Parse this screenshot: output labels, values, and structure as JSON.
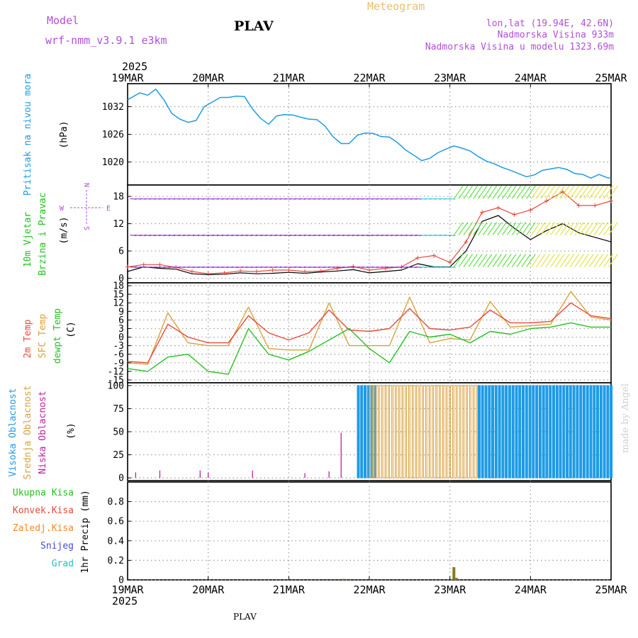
{
  "header": {
    "model_label": "Model",
    "model_name": "wrf-nmm_v3.9.1 e3km",
    "station": "PLAV",
    "product": "Meteogram",
    "lonlat": "lon,lat (19.94E, 42.6N)",
    "elevation": "Nadmorska Visina 933m",
    "model_elevation": "Nadmorska Visina u modelu 1323.69m",
    "footer_station": "PLAV",
    "credit": "made by Angel"
  },
  "colors": {
    "pressure": "#1e9be6",
    "temp2m": "#e84a3c",
    "sfc_temp": "#d9a13b",
    "dewpt": "#22c21e",
    "high_cloud": "#1e9be6",
    "mid_cloud": "#d9a13b",
    "low_cloud": "#c020a0",
    "total_precip": "#22c21e",
    "conv_precip": "#e84a3c",
    "freezing_precip": "#f08a28",
    "snow": "#4848e0",
    "hail": "#20c0c0",
    "wind_gust": "#e84a3c",
    "purple_text": "#b050d8",
    "gold_text": "#e8c070"
  },
  "chart_data": [
    {
      "id": "pressure",
      "type": "line",
      "title": "Pritisak na nivou mora",
      "ylabel": "(hPa)",
      "ylim": [
        1015,
        1037
      ],
      "yticks": [
        1020,
        1026,
        1032
      ],
      "x_top_year": "2025",
      "x_bottom_year": "2025",
      "x_labels": [
        "19MAR",
        "20MAR",
        "21MAR",
        "22MAR",
        "23MAR",
        "24MAR",
        "25MAR"
      ],
      "x": [
        0,
        0.15,
        0.25,
        0.35,
        0.45,
        0.55,
        0.65,
        0.75,
        0.85,
        0.95,
        1.05,
        1.15,
        1.25,
        1.35,
        1.45,
        1.55,
        1.65,
        1.75,
        1.85,
        1.95,
        2.05,
        2.15,
        2.25,
        2.35,
        2.45,
        2.55,
        2.65,
        2.75,
        2.85,
        2.95,
        3.05,
        3.15,
        3.25,
        3.35,
        3.45,
        3.55,
        3.65,
        3.75,
        3.85,
        3.95,
        4.05,
        4.15,
        4.25,
        4.35,
        4.45,
        4.55,
        4.65,
        4.75,
        4.85,
        4.95,
        5.05,
        5.15,
        5.25,
        5.35,
        5.45,
        5.55,
        5.65,
        5.75,
        5.85,
        5.95,
        6.0
      ],
      "series": [
        {
          "name": "Pritisak",
          "values": [
            1033.5,
            1035,
            1034.5,
            1035.8,
            1033.5,
            1030.5,
            1029.3,
            1028.6,
            1029,
            1032,
            1033,
            1034,
            1034,
            1034.3,
            1034.2,
            1031.5,
            1029.5,
            1028.2,
            1030,
            1030.3,
            1030.2,
            1029.7,
            1029.3,
            1029.2,
            1027.8,
            1025.5,
            1024,
            1024,
            1025.8,
            1026.3,
            1026.2,
            1025.5,
            1025.4,
            1024.2,
            1022.6,
            1021.5,
            1020.3,
            1020.8,
            1022,
            1022.8,
            1023.5,
            1023,
            1022.4,
            1021.2,
            1020.2,
            1019.6,
            1018.8,
            1018.2,
            1017.5,
            1016.8,
            1017.2,
            1018.2,
            1018.5,
            1018.8,
            1018.4,
            1017.5,
            1017.3,
            1016.5,
            1017.3,
            1016.6,
            1016.5
          ]
        }
      ]
    },
    {
      "id": "wind",
      "type": "line",
      "title": "10m Vjetar",
      "title2": "Brzina i Pravac",
      "ylabel": "(m/s)",
      "ylim": [
        -1,
        20.5
      ],
      "yticks": [
        0,
        6,
        12,
        18
      ],
      "compass": {
        "n": "N",
        "e": "E",
        "s": "S",
        "w": "W"
      },
      "x": [
        0,
        0.2,
        0.4,
        0.6,
        0.8,
        1.0,
        1.2,
        1.4,
        1.6,
        1.8,
        2.0,
        2.2,
        2.4,
        2.6,
        2.8,
        3.0,
        3.2,
        3.4,
        3.6,
        3.8,
        4.0,
        4.2,
        4.4,
        4.6,
        4.8,
        5.0,
        5.2,
        5.4,
        5.6,
        5.8,
        6.0
      ],
      "series": [
        {
          "name": "wind_speed",
          "values": [
            1.5,
            2.5,
            2.2,
            2.0,
            1.0,
            0.8,
            0.9,
            1.2,
            1.0,
            1.1,
            1.3,
            1.1,
            1.4,
            1.6,
            1.9,
            1.2,
            1.5,
            1.8,
            3.2,
            2.5,
            2.5,
            6.0,
            12.5,
            13.8,
            11.0,
            8.5,
            10.5,
            12.0,
            10.0,
            9.0,
            8.0
          ]
        },
        {
          "name": "wind_gust",
          "values": [
            2.5,
            3.0,
            3.0,
            2.4,
            1.5,
            1.0,
            1.2,
            1.6,
            1.5,
            1.8,
            1.8,
            1.5,
            1.6,
            2.2,
            2.6,
            1.8,
            2.2,
            2.5,
            4.5,
            5.0,
            3.5,
            8.0,
            14.5,
            15.5,
            14.0,
            15.0,
            17.0,
            19.0,
            16.0,
            16.0,
            17.0
          ]
        }
      ]
    },
    {
      "id": "temperature",
      "type": "line",
      "title": "2m Temp",
      "title2": "SFC Temp",
      "title3": "dewpt Temp",
      "ylabel": "(C)",
      "ylim": [
        -16,
        19
      ],
      "yticks": [
        -15,
        -12,
        -9,
        -6,
        -3,
        0,
        3,
        6,
        9,
        12,
        15,
        18
      ],
      "x": [
        0,
        0.25,
        0.5,
        0.75,
        1.0,
        1.25,
        1.5,
        1.75,
        2.0,
        2.25,
        2.5,
        2.75,
        3.0,
        3.25,
        3.5,
        3.75,
        4.0,
        4.25,
        4.5,
        4.75,
        5.0,
        5.25,
        5.5,
        5.75,
        6.0
      ],
      "series": [
        {
          "name": "2m Temp",
          "values": [
            -8.5,
            -9.0,
            4.5,
            0,
            -2,
            -2,
            7.5,
            1.5,
            -1,
            1.5,
            9.5,
            2.5,
            2,
            3,
            10,
            3,
            2.5,
            3.5,
            9.5,
            5,
            5,
            5.5,
            12,
            7.5,
            6.5
          ]
        },
        {
          "name": "SFC Temp",
          "values": [
            -9,
            -9.5,
            8.5,
            -2,
            -3,
            -3,
            10.5,
            -4,
            -4.5,
            -4.5,
            12,
            -3,
            -3,
            -3,
            14,
            -2,
            -0.5,
            -1,
            12.5,
            3.5,
            4,
            4.5,
            16,
            7,
            6
          ]
        },
        {
          "name": "dewpt Temp",
          "values": [
            -11,
            -12,
            -7,
            -6,
            -12,
            -13,
            3,
            -6,
            -8,
            -5,
            -1,
            3,
            -4,
            -9,
            2,
            0,
            1,
            -2,
            2,
            1,
            3,
            3.5,
            5,
            3.5,
            3.5
          ]
        }
      ]
    },
    {
      "id": "cloud",
      "type": "bar",
      "title": "Visoka Oblacnost",
      "title2": "Srednja Oblacnost",
      "title3": "Niska Oblacnost",
      "ylabel": "(%)",
      "ylim": [
        -3,
        103
      ],
      "yticks": [
        0,
        25,
        50,
        75,
        100
      ],
      "bands": [
        {
          "name": "Visoka Oblacnost",
          "from_day": 2.85,
          "to_day": 3.08,
          "value": 100
        },
        {
          "name": "Srednja Oblacnost",
          "from_day": 3.0,
          "to_day": 4.35,
          "value": 100
        },
        {
          "name": "Visoka Oblacnost",
          "from_day": 4.35,
          "to_day": 6.0,
          "value": 100
        }
      ],
      "low_spikes": [
        {
          "day": 0.1,
          "value": 6
        },
        {
          "day": 0.4,
          "value": 8
        },
        {
          "day": 0.9,
          "value": 8
        },
        {
          "day": 1.0,
          "value": 6
        },
        {
          "day": 1.55,
          "value": 8
        },
        {
          "day": 2.2,
          "value": 5
        },
        {
          "day": 2.5,
          "value": 7
        },
        {
          "day": 2.65,
          "value": 49
        }
      ]
    },
    {
      "id": "precip",
      "type": "bar",
      "title": "Ukupna Kisa",
      "title2": "Konvek.Kisa",
      "title3": "Zaledj.Kisa",
      "title4": "Snijeg",
      "title5": "Grad",
      "ylabel": "1hr Precip (mm)",
      "ylim": [
        0,
        1.0
      ],
      "yticks": [
        0,
        0.2,
        0.4,
        0.6,
        0.8
      ],
      "bars": [
        {
          "day": 2.68,
          "value": 0.01
        },
        {
          "day": 4.05,
          "value": 0.13
        },
        {
          "day": 4.08,
          "value": 0.02
        }
      ]
    }
  ]
}
